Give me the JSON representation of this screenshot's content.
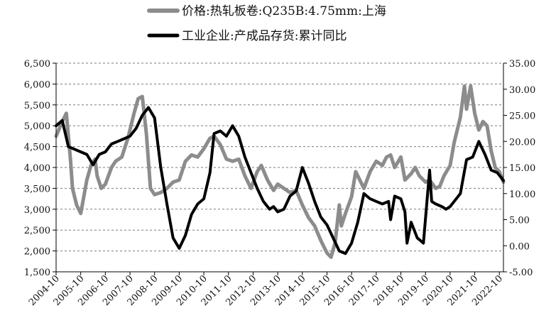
{
  "chart_data": {
    "type": "line",
    "title": "",
    "legend": {
      "placement": "top-center",
      "entries": [
        {
          "label": "价格:热轧板卷:Q235B:4.75mm:上海",
          "color": "#8c8c8c"
        },
        {
          "label": "工业企业:产成品存货:累计同比",
          "color": "#000000"
        }
      ]
    },
    "x_axis": {
      "start": "2004-10",
      "end": "2022-12",
      "tick_labels": [
        "2004-10",
        "2005-10",
        "2006-10",
        "2007-10",
        "2008-10",
        "2009-10",
        "2010-10",
        "2011-10",
        "2012-10",
        "2013-10",
        "2014-10",
        "2015-10",
        "2016-10",
        "2017-10",
        "2018-10",
        "2019-10",
        "2020-10",
        "2021-10",
        "2022-10"
      ]
    },
    "y_left": {
      "range": [
        1500,
        6500
      ],
      "tick_labels": [
        "1,500",
        "2,000",
        "2,500",
        "3,000",
        "3,500",
        "4,000",
        "4,500",
        "5,000",
        "5,500",
        "6,000",
        "6,500"
      ],
      "tick_values": [
        1500,
        2000,
        2500,
        3000,
        3500,
        4000,
        4500,
        5000,
        5500,
        6000,
        6500
      ]
    },
    "y_right": {
      "range": [
        -5,
        35
      ],
      "tick_labels": [
        "-5.00",
        "0.00",
        "5.00",
        "10.00",
        "15.00",
        "20.00",
        "25.00",
        "30.00",
        "35.00"
      ],
      "tick_values": [
        -5,
        0,
        5,
        10,
        15,
        20,
        25,
        30,
        35
      ]
    },
    "grid": "horizontal-dashed",
    "series": [
      {
        "name": "价格:热轧板卷:Q235B:4.75mm:上海",
        "axis": "left",
        "color": "#8c8c8c",
        "points": [
          [
            "2004-10",
            4750
          ],
          [
            "2005-01",
            5100
          ],
          [
            "2005-03",
            5300
          ],
          [
            "2005-05",
            4200
          ],
          [
            "2005-06",
            3500
          ],
          [
            "2005-08",
            3100
          ],
          [
            "2005-10",
            2900
          ],
          [
            "2006-01",
            3700
          ],
          [
            "2006-03",
            4050
          ],
          [
            "2006-05",
            4200
          ],
          [
            "2006-06",
            3800
          ],
          [
            "2006-08",
            3500
          ],
          [
            "2006-10",
            3600
          ],
          [
            "2007-01",
            4000
          ],
          [
            "2007-03",
            4150
          ],
          [
            "2007-06",
            4250
          ],
          [
            "2007-09",
            4700
          ],
          [
            "2007-12",
            5300
          ],
          [
            "2008-02",
            5650
          ],
          [
            "2008-04",
            5700
          ],
          [
            "2008-06",
            4800
          ],
          [
            "2008-08",
            3500
          ],
          [
            "2008-10",
            3350
          ],
          [
            "2009-01",
            3400
          ],
          [
            "2009-04",
            3500
          ],
          [
            "2009-07",
            3650
          ],
          [
            "2009-10",
            3700
          ],
          [
            "2010-01",
            4150
          ],
          [
            "2010-04",
            4300
          ],
          [
            "2010-07",
            4250
          ],
          [
            "2010-10",
            4450
          ],
          [
            "2011-01",
            4700
          ],
          [
            "2011-03",
            4750
          ],
          [
            "2011-06",
            4550
          ],
          [
            "2011-09",
            4200
          ],
          [
            "2011-12",
            4150
          ],
          [
            "2012-03",
            4200
          ],
          [
            "2012-06",
            3800
          ],
          [
            "2012-09",
            3500
          ],
          [
            "2012-12",
            3900
          ],
          [
            "2013-02",
            4050
          ],
          [
            "2013-05",
            3700
          ],
          [
            "2013-08",
            3450
          ],
          [
            "2013-10",
            3600
          ],
          [
            "2014-01",
            3500
          ],
          [
            "2014-04",
            3400
          ],
          [
            "2014-07",
            3450
          ],
          [
            "2014-10",
            3100
          ],
          [
            "2015-01",
            2800
          ],
          [
            "2015-04",
            2600
          ],
          [
            "2015-07",
            2250
          ],
          [
            "2015-10",
            1950
          ],
          [
            "2015-12",
            1850
          ],
          [
            "2016-02",
            2200
          ],
          [
            "2016-04",
            3100
          ],
          [
            "2016-05",
            2600
          ],
          [
            "2016-07",
            2900
          ],
          [
            "2016-10",
            3300
          ],
          [
            "2016-12",
            3900
          ],
          [
            "2017-02",
            3700
          ],
          [
            "2017-04",
            3500
          ],
          [
            "2017-07",
            3900
          ],
          [
            "2017-10",
            4150
          ],
          [
            "2018-01",
            4050
          ],
          [
            "2018-03",
            4250
          ],
          [
            "2018-05",
            4300
          ],
          [
            "2018-07",
            4000
          ],
          [
            "2018-10",
            4250
          ],
          [
            "2018-12",
            3700
          ],
          [
            "2019-03",
            3850
          ],
          [
            "2019-05",
            4000
          ],
          [
            "2019-07",
            3800
          ],
          [
            "2019-10",
            3650
          ],
          [
            "2019-12",
            3700
          ],
          [
            "2020-03",
            3500
          ],
          [
            "2020-05",
            3550
          ],
          [
            "2020-07",
            3800
          ],
          [
            "2020-10",
            4050
          ],
          [
            "2020-12",
            4600
          ],
          [
            "2021-03",
            5200
          ],
          [
            "2021-05",
            5950
          ],
          [
            "2021-06",
            5400
          ],
          [
            "2021-08",
            5950
          ],
          [
            "2021-10",
            5300
          ],
          [
            "2021-12",
            4900
          ],
          [
            "2022-02",
            5100
          ],
          [
            "2022-04",
            5000
          ],
          [
            "2022-06",
            4400
          ],
          [
            "2022-08",
            4000
          ],
          [
            "2022-10",
            3900
          ],
          [
            "2022-12",
            3650
          ]
        ]
      },
      {
        "name": "工业企业:产成品存货:累计同比",
        "axis": "right",
        "color": "#000000",
        "points": [
          [
            "2004-10",
            23.0
          ],
          [
            "2005-01",
            24.0
          ],
          [
            "2005-04",
            19.0
          ],
          [
            "2005-07",
            18.5
          ],
          [
            "2005-10",
            18.0
          ],
          [
            "2006-01",
            17.5
          ],
          [
            "2006-04",
            15.5
          ],
          [
            "2006-07",
            17.5
          ],
          [
            "2006-10",
            18.0
          ],
          [
            "2007-01",
            19.5
          ],
          [
            "2007-04",
            20.0
          ],
          [
            "2007-07",
            20.5
          ],
          [
            "2007-10",
            21.0
          ],
          [
            "2008-01",
            22.5
          ],
          [
            "2008-04",
            25.0
          ],
          [
            "2008-07",
            26.5
          ],
          [
            "2008-10",
            24.5
          ],
          [
            "2009-01",
            15.0
          ],
          [
            "2009-04",
            8.0
          ],
          [
            "2009-07",
            1.5
          ],
          [
            "2009-10",
            -0.5
          ],
          [
            "2010-01",
            2.0
          ],
          [
            "2010-04",
            6.0
          ],
          [
            "2010-07",
            8.0
          ],
          [
            "2010-10",
            9.0
          ],
          [
            "2011-01",
            14.0
          ],
          [
            "2011-03",
            21.5
          ],
          [
            "2011-06",
            22.0
          ],
          [
            "2011-09",
            21.0
          ],
          [
            "2011-12",
            23.0
          ],
          [
            "2012-03",
            21.0
          ],
          [
            "2012-06",
            17.0
          ],
          [
            "2012-09",
            14.0
          ],
          [
            "2012-12",
            11.0
          ],
          [
            "2013-03",
            8.5
          ],
          [
            "2013-06",
            7.0
          ],
          [
            "2013-08",
            7.5
          ],
          [
            "2013-10",
            6.5
          ],
          [
            "2014-01",
            7.0
          ],
          [
            "2014-04",
            9.5
          ],
          [
            "2014-07",
            10.5
          ],
          [
            "2014-10",
            15.0
          ],
          [
            "2015-01",
            12.0
          ],
          [
            "2015-04",
            8.5
          ],
          [
            "2015-07",
            5.5
          ],
          [
            "2015-10",
            4.0
          ],
          [
            "2016-01",
            1.5
          ],
          [
            "2016-04",
            -1.0
          ],
          [
            "2016-07",
            -1.5
          ],
          [
            "2016-10",
            0.5
          ],
          [
            "2017-01",
            4.5
          ],
          [
            "2017-04",
            10.0
          ],
          [
            "2017-07",
            9.0
          ],
          [
            "2017-10",
            8.5
          ],
          [
            "2018-01",
            8.0
          ],
          [
            "2018-04",
            8.5
          ],
          [
            "2018-05",
            5.0
          ],
          [
            "2018-07",
            9.5
          ],
          [
            "2018-10",
            9.0
          ],
          [
            "2018-12",
            6.5
          ],
          [
            "2019-01",
            0.5
          ],
          [
            "2019-03",
            4.5
          ],
          [
            "2019-06",
            1.5
          ],
          [
            "2019-09",
            0.5
          ],
          [
            "2019-12",
            14.5
          ],
          [
            "2020-01",
            8.5
          ],
          [
            "2020-03",
            8.0
          ],
          [
            "2020-06",
            7.5
          ],
          [
            "2020-08",
            7.0
          ],
          [
            "2020-10",
            7.5
          ],
          [
            "2020-12",
            8.5
          ],
          [
            "2021-03",
            10.0
          ],
          [
            "2021-06",
            16.5
          ],
          [
            "2021-09",
            17.0
          ],
          [
            "2021-12",
            20.0
          ],
          [
            "2022-03",
            17.5
          ],
          [
            "2022-06",
            14.5
          ],
          [
            "2022-09",
            14.0
          ],
          [
            "2022-12",
            12.5
          ]
        ]
      }
    ]
  }
}
